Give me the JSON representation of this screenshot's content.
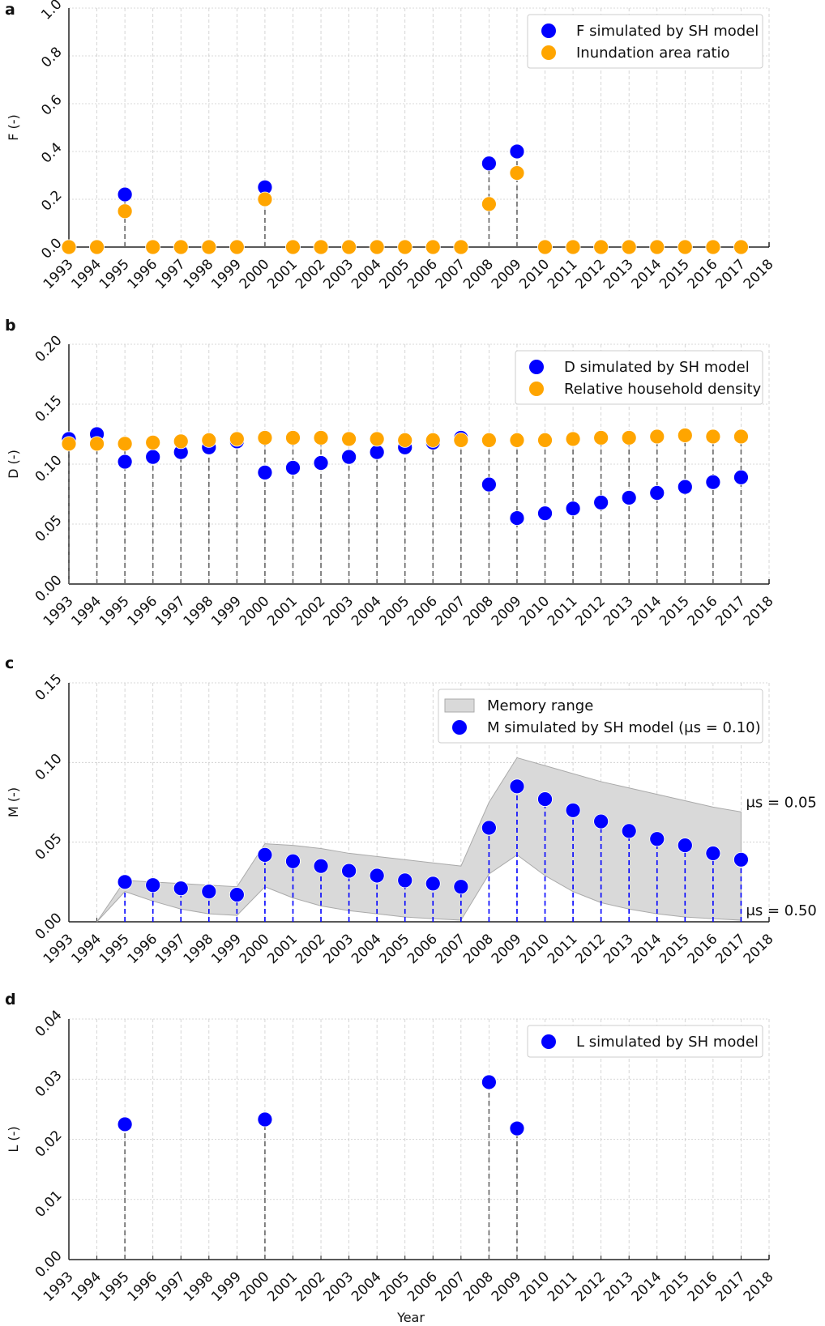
{
  "colors": {
    "sim": "#0000ff",
    "obs": "#ffa500",
    "band": "#d9d9d9",
    "stem": "#666666"
  },
  "xlabel": "Year",
  "chart_data": [
    {
      "panel": "a",
      "type": "scatter",
      "ylabel": "F (-)",
      "ylim": [
        0,
        1.0
      ],
      "yticks": [
        "0.0",
        "0.2",
        "0.4",
        "0.6",
        "0.8",
        "1.0"
      ],
      "ytick_values": [
        0,
        0.2,
        0.4,
        0.6,
        0.8,
        1.0
      ],
      "xticks": [
        "1993",
        "1994",
        "1995",
        "1996",
        "1997",
        "1998",
        "1999",
        "2000",
        "2001",
        "2002",
        "2003",
        "2004",
        "2005",
        "2006",
        "2007",
        "2008",
        "2009",
        "2010",
        "2011",
        "2012",
        "2013",
        "2014",
        "2015",
        "2016",
        "2017",
        "2018"
      ],
      "x": [
        1993,
        1994,
        1995,
        1996,
        1997,
        1998,
        1999,
        2000,
        2001,
        2002,
        2003,
        2004,
        2005,
        2006,
        2007,
        2008,
        2009,
        2010,
        2011,
        2012,
        2013,
        2014,
        2015,
        2016,
        2017
      ],
      "legend": "top-right",
      "series": [
        {
          "name": "F simulated by SH model",
          "color": "#0000ff",
          "values": [
            0,
            0,
            0.22,
            0,
            0,
            0,
            0,
            0.25,
            0,
            0,
            0,
            0,
            0,
            0,
            0,
            0.35,
            0.4,
            0,
            0,
            0,
            0,
            0,
            0,
            0,
            0
          ]
        },
        {
          "name": "Inundation area ratio",
          "color": "#ffa500",
          "values": [
            0,
            0,
            0.15,
            0,
            0,
            0,
            0,
            0.2,
            0,
            0,
            0,
            0,
            0,
            0,
            0,
            0.18,
            0.31,
            0,
            0,
            0,
            0,
            0,
            0,
            0,
            0
          ]
        }
      ]
    },
    {
      "panel": "b",
      "type": "scatter",
      "ylabel": "D (-)",
      "ylim": [
        0,
        0.2
      ],
      "yticks": [
        "0.00",
        "0.05",
        "0.10",
        "0.15",
        "0.20"
      ],
      "ytick_values": [
        0,
        0.05,
        0.1,
        0.15,
        0.2
      ],
      "xticks": [
        "1993",
        "1994",
        "1995",
        "1996",
        "1997",
        "1998",
        "1999",
        "2000",
        "2001",
        "2002",
        "2003",
        "2004",
        "2005",
        "2006",
        "2007",
        "2008",
        "2009",
        "2010",
        "2011",
        "2012",
        "2013",
        "2014",
        "2015",
        "2016",
        "2017",
        "2018"
      ],
      "x": [
        1993,
        1994,
        1995,
        1996,
        1997,
        1998,
        1999,
        2000,
        2001,
        2002,
        2003,
        2004,
        2005,
        2006,
        2007,
        2008,
        2009,
        2010,
        2011,
        2012,
        2013,
        2014,
        2015,
        2016,
        2017
      ],
      "legend": "top-right",
      "series": [
        {
          "name": "D simulated by SH model",
          "color": "#0000ff",
          "values": [
            0.121,
            0.125,
            0.102,
            0.106,
            0.11,
            0.114,
            0.119,
            0.093,
            0.097,
            0.101,
            0.106,
            0.11,
            0.114,
            0.118,
            0.122,
            0.083,
            0.055,
            0.059,
            0.063,
            0.068,
            0.072,
            0.076,
            0.081,
            0.085,
            0.089
          ]
        },
        {
          "name": "Relative household density",
          "color": "#ffa500",
          "values": [
            0.117,
            0.117,
            0.117,
            0.118,
            0.119,
            0.12,
            0.121,
            0.122,
            0.122,
            0.122,
            0.121,
            0.121,
            0.12,
            0.12,
            0.12,
            0.12,
            0.12,
            0.12,
            0.121,
            0.122,
            0.122,
            0.123,
            0.124,
            0.123,
            0.123
          ]
        }
      ]
    },
    {
      "panel": "c",
      "type": "area",
      "ylabel": "M (-)",
      "ylim": [
        0,
        0.15
      ],
      "yticks": [
        "0.00",
        "0.05",
        "0.10",
        "0.15"
      ],
      "ytick_values": [
        0,
        0.05,
        0.1,
        0.15
      ],
      "xticks": [
        "1993",
        "1994",
        "1995",
        "1996",
        "1997",
        "1998",
        "1999",
        "2000",
        "2001",
        "2002",
        "2003",
        "2004",
        "2005",
        "2006",
        "2007",
        "2008",
        "2009",
        "2010",
        "2011",
        "2012",
        "2013",
        "2014",
        "2015",
        "2016",
        "2017",
        "2018"
      ],
      "legend": "top-right",
      "band": {
        "name": "Memory range",
        "x": [
          1994,
          1995,
          1996,
          1997,
          1998,
          1999,
          2000,
          2001,
          2002,
          2003,
          2004,
          2005,
          2006,
          2007,
          2008,
          2009,
          2010,
          2011,
          2012,
          2013,
          2014,
          2015,
          2016,
          2017
        ],
        "upper": [
          0,
          0.026,
          0.025,
          0.024,
          0.023,
          0.022,
          0.049,
          0.048,
          0.046,
          0.043,
          0.041,
          0.039,
          0.037,
          0.035,
          0.075,
          0.103,
          0.098,
          0.093,
          0.088,
          0.084,
          0.08,
          0.076,
          0.072,
          0.069
        ],
        "lower": [
          0,
          0.019,
          0.013,
          0.008,
          0.005,
          0.004,
          0.022,
          0.015,
          0.01,
          0.007,
          0.005,
          0.003,
          0.002,
          0.001,
          0.03,
          0.042,
          0.029,
          0.019,
          0.012,
          0.008,
          0.005,
          0.003,
          0.002,
          0.001
        ],
        "upper_label": "μs = 0.05",
        "lower_label": "μs = 0.50"
      },
      "series": [
        {
          "name": "M simulated by SH model (μs = 0.10)",
          "color": "#0000ff",
          "x": [
            1995,
            1996,
            1997,
            1998,
            1999,
            2000,
            2001,
            2002,
            2003,
            2004,
            2005,
            2006,
            2007,
            2008,
            2009,
            2010,
            2011,
            2012,
            2013,
            2014,
            2015,
            2016,
            2017
          ],
          "values": [
            0.025,
            0.023,
            0.021,
            0.019,
            0.017,
            0.042,
            0.038,
            0.035,
            0.032,
            0.029,
            0.026,
            0.024,
            0.022,
            0.059,
            0.085,
            0.077,
            0.07,
            0.063,
            0.057,
            0.052,
            0.048,
            0.043,
            0.039
          ]
        }
      ]
    },
    {
      "panel": "d",
      "type": "scatter",
      "ylabel": "L (-)",
      "ylim": [
        0,
        0.04
      ],
      "xlabel": "Year",
      "yticks": [
        "0.00",
        "0.01",
        "0.02",
        "0.03",
        "0.04"
      ],
      "ytick_values": [
        0,
        0.01,
        0.02,
        0.03,
        0.04
      ],
      "xticks": [
        "1993",
        "1994",
        "1995",
        "1996",
        "1997",
        "1998",
        "1999",
        "2000",
        "2001",
        "2002",
        "2003",
        "2004",
        "2005",
        "2006",
        "2007",
        "2008",
        "2009",
        "2010",
        "2011",
        "2012",
        "2013",
        "2014",
        "2015",
        "2016",
        "2017",
        "2018"
      ],
      "legend": "top-right",
      "series": [
        {
          "name": "L simulated by SH model",
          "color": "#0000ff",
          "x": [
            1995,
            2000,
            2008,
            2009
          ],
          "values": [
            0.0225,
            0.0233,
            0.0295,
            0.0218
          ]
        }
      ]
    }
  ]
}
